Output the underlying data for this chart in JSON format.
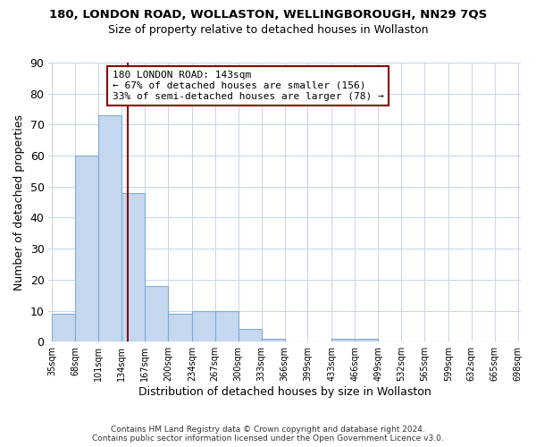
{
  "title": "180, LONDON ROAD, WOLLASTON, WELLINGBOROUGH, NN29 7QS",
  "subtitle": "Size of property relative to detached houses in Wollaston",
  "xlabel": "Distribution of detached houses by size in Wollaston",
  "ylabel": "Number of detached properties",
  "bar_edges": [
    35,
    68,
    101,
    134,
    167,
    200,
    234,
    267,
    300,
    333,
    366,
    399,
    433,
    466,
    499,
    532,
    565,
    599,
    632,
    665,
    698
  ],
  "bar_heights": [
    9,
    60,
    73,
    48,
    18,
    9,
    10,
    10,
    4,
    1,
    0,
    0,
    1,
    1,
    0,
    0,
    0,
    0,
    0,
    0
  ],
  "bar_color": "#c5d8ef",
  "bar_edge_color": "#7aadd4",
  "vline_x": 143,
  "vline_color": "#8b0000",
  "ylim": [
    0,
    90
  ],
  "yticks": [
    0,
    10,
    20,
    30,
    40,
    50,
    60,
    70,
    80,
    90
  ],
  "annotation_line1": "180 LONDON ROAD: 143sqm",
  "annotation_line2": "← 67% of detached houses are smaller (156)",
  "annotation_line3": "33% of semi-detached houses are larger (78) →",
  "annotation_box_color": "#ffffff",
  "annotation_box_edge": "#8b0000",
  "footer_line1": "Contains HM Land Registry data © Crown copyright and database right 2024.",
  "footer_line2": "Contains public sector information licensed under the Open Government Licence v3.0.",
  "background_color": "#ffffff",
  "grid_color": "#c8d4e8",
  "title_fontsize": 9.5,
  "subtitle_fontsize": 9,
  "ylabel_fontsize": 9,
  "xlabel_fontsize": 9
}
